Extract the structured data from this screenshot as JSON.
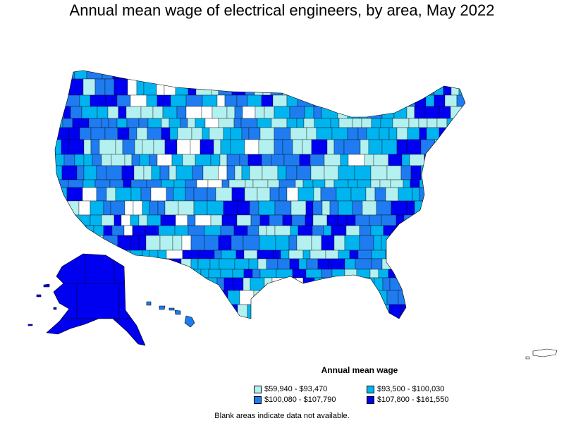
{
  "title": "Annual mean wage of electrical engineers, by area, May 2022",
  "legend": {
    "title": "Annual mean wage",
    "items": [
      {
        "label": "$59,940 - $93,470",
        "color": "#b3f0f0"
      },
      {
        "label": "$93,500 - $100,030",
        "color": "#00b4f0"
      },
      {
        "label": "$100,080 - $107,790",
        "color": "#1e7cf0"
      },
      {
        "label": "$107,800 - $161,550",
        "color": "#0000f0"
      }
    ]
  },
  "footnote": "Blank areas indicate data not available.",
  "colors": {
    "blank": "#ffffff",
    "border": "#000000"
  }
}
